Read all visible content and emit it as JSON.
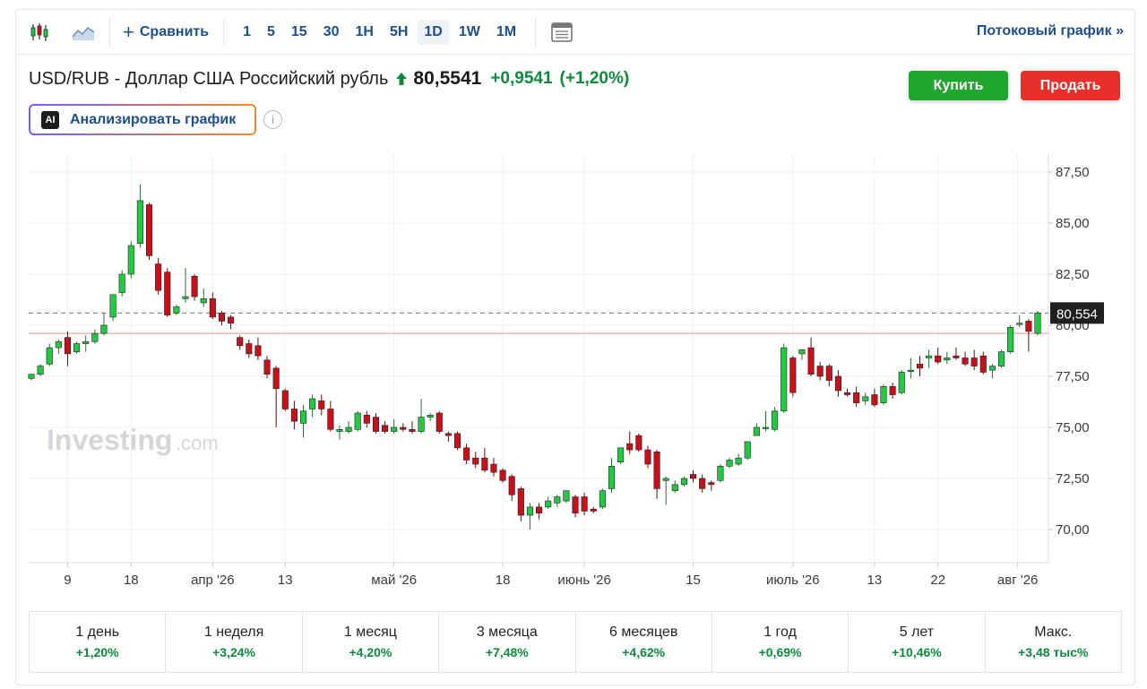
{
  "toolbar": {
    "candles_icon": "candlestick-icon",
    "area_icon": "area-chart-icon",
    "compare_label": "Сравнить",
    "intervals": [
      "1",
      "5",
      "15",
      "30",
      "1H",
      "5H",
      "1D",
      "1W",
      "1M"
    ],
    "active_interval": "1D",
    "indicators_icon": "indicators-icon",
    "stream_label": "Потоковый график »"
  },
  "header": {
    "pair_name": "USD/RUB - Доллар США Российский рубль",
    "price": "80,5541",
    "change": "+0,9541",
    "change_pct": "(+1,20%)",
    "direction": "up",
    "buy_label": "Купить",
    "sell_label": "Продать"
  },
  "ai": {
    "badge": "AI",
    "label": "Анализировать график",
    "info_icon": "info-icon"
  },
  "watermark": {
    "brand": "Investing",
    "suffix": ".com"
  },
  "colors": {
    "up": "#23c843",
    "down": "#c8101b",
    "accent": "#1c4f8c",
    "positive_text": "#0d8a3c",
    "buy": "#1fa62f",
    "sell": "#e8302b"
  },
  "chart_data": {
    "type": "candlestick",
    "title": "",
    "xlabel": "",
    "ylabel": "",
    "ylim": [
      68.5,
      88.5
    ],
    "y_ticks": [
      70,
      72.5,
      75,
      77.5,
      80,
      82.5,
      85,
      87.5
    ],
    "y_tick_labels": [
      "70,00",
      "72,50",
      "75,00",
      "77,50",
      "80,00",
      "82,50",
      "85,00",
      "87,50"
    ],
    "x_tick_labels": [
      "9",
      "18",
      "апр '26",
      "13",
      "май '26",
      "18",
      "июнь '26",
      "15",
      "июль '26",
      "13",
      "22",
      "авг '26"
    ],
    "last_price": 80.554,
    "last_price_label": "80,554",
    "reference_level": 79.6,
    "grid": true,
    "series": [
      {
        "o": 77.4,
        "h": 77.6,
        "l": 77.3,
        "c": 77.6
      },
      {
        "o": 77.6,
        "h": 78.1,
        "l": 77.5,
        "c": 78.0
      },
      {
        "o": 78.1,
        "h": 79.1,
        "l": 78.0,
        "c": 78.9
      },
      {
        "o": 78.9,
        "h": 79.3,
        "l": 78.6,
        "c": 79.2
      },
      {
        "o": 79.4,
        "h": 79.7,
        "l": 78.0,
        "c": 78.6
      },
      {
        "o": 78.7,
        "h": 79.2,
        "l": 78.6,
        "c": 79.1
      },
      {
        "o": 79.1,
        "h": 79.5,
        "l": 78.7,
        "c": 79.2
      },
      {
        "o": 79.2,
        "h": 79.8,
        "l": 79.1,
        "c": 79.6
      },
      {
        "o": 79.6,
        "h": 80.6,
        "l": 79.5,
        "c": 80.0
      },
      {
        "o": 80.4,
        "h": 81.5,
        "l": 80.2,
        "c": 81.5
      },
      {
        "o": 81.6,
        "h": 82.7,
        "l": 81.4,
        "c": 82.5
      },
      {
        "o": 82.5,
        "h": 84.1,
        "l": 82.3,
        "c": 83.9
      },
      {
        "o": 84.0,
        "h": 86.9,
        "l": 83.8,
        "c": 86.1
      },
      {
        "o": 85.9,
        "h": 86.0,
        "l": 83.2,
        "c": 83.4
      },
      {
        "o": 83.0,
        "h": 83.3,
        "l": 81.5,
        "c": 81.7
      },
      {
        "o": 82.6,
        "h": 82.8,
        "l": 80.4,
        "c": 80.5
      },
      {
        "o": 80.6,
        "h": 81.0,
        "l": 80.5,
        "c": 80.9
      },
      {
        "o": 81.3,
        "h": 82.8,
        "l": 81.1,
        "c": 81.4
      },
      {
        "o": 82.4,
        "h": 82.5,
        "l": 81.2,
        "c": 81.4
      },
      {
        "o": 81.1,
        "h": 81.8,
        "l": 80.9,
        "c": 81.3
      },
      {
        "o": 81.3,
        "h": 81.6,
        "l": 80.3,
        "c": 80.4
      },
      {
        "o": 80.6,
        "h": 80.7,
        "l": 80.0,
        "c": 80.2
      },
      {
        "o": 80.4,
        "h": 80.5,
        "l": 79.8,
        "c": 80.1
      },
      {
        "o": 79.4,
        "h": 79.5,
        "l": 78.8,
        "c": 79.0
      },
      {
        "o": 79.1,
        "h": 79.3,
        "l": 78.4,
        "c": 78.6
      },
      {
        "o": 79.0,
        "h": 79.4,
        "l": 78.3,
        "c": 78.5
      },
      {
        "o": 78.3,
        "h": 78.5,
        "l": 77.4,
        "c": 77.6
      },
      {
        "o": 77.9,
        "h": 78.0,
        "l": 75.0,
        "c": 76.9
      },
      {
        "o": 76.8,
        "h": 76.9,
        "l": 75.8,
        "c": 75.9
      },
      {
        "o": 75.9,
        "h": 76.3,
        "l": 74.9,
        "c": 75.3
      },
      {
        "o": 75.2,
        "h": 76.1,
        "l": 74.5,
        "c": 75.8
      },
      {
        "o": 75.9,
        "h": 76.6,
        "l": 75.5,
        "c": 76.4
      },
      {
        "o": 76.3,
        "h": 76.6,
        "l": 75.6,
        "c": 75.9
      },
      {
        "o": 75.9,
        "h": 76.3,
        "l": 74.8,
        "c": 74.9
      },
      {
        "o": 74.8,
        "h": 75.1,
        "l": 74.4,
        "c": 74.9
      },
      {
        "o": 74.8,
        "h": 75.3,
        "l": 74.7,
        "c": 75.0
      },
      {
        "o": 74.9,
        "h": 75.8,
        "l": 74.8,
        "c": 75.7
      },
      {
        "o": 75.6,
        "h": 75.8,
        "l": 75.0,
        "c": 75.2
      },
      {
        "o": 75.5,
        "h": 75.7,
        "l": 74.7,
        "c": 74.8
      },
      {
        "o": 75.1,
        "h": 75.3,
        "l": 74.7,
        "c": 74.8
      },
      {
        "o": 74.8,
        "h": 75.4,
        "l": 74.7,
        "c": 75.0
      },
      {
        "o": 75.0,
        "h": 75.2,
        "l": 74.8,
        "c": 74.9
      },
      {
        "o": 74.9,
        "h": 75.3,
        "l": 74.7,
        "c": 74.8
      },
      {
        "o": 74.8,
        "h": 76.4,
        "l": 74.7,
        "c": 75.5
      },
      {
        "o": 75.5,
        "h": 75.7,
        "l": 75.3,
        "c": 75.6
      },
      {
        "o": 75.7,
        "h": 75.8,
        "l": 74.7,
        "c": 74.8
      },
      {
        "o": 74.7,
        "h": 74.8,
        "l": 74.3,
        "c": 74.6
      },
      {
        "o": 74.7,
        "h": 74.8,
        "l": 73.9,
        "c": 74.0
      },
      {
        "o": 74.0,
        "h": 74.2,
        "l": 73.2,
        "c": 73.4
      },
      {
        "o": 73.5,
        "h": 73.8,
        "l": 73.0,
        "c": 73.2
      },
      {
        "o": 73.5,
        "h": 74.0,
        "l": 72.8,
        "c": 72.9
      },
      {
        "o": 73.2,
        "h": 73.5,
        "l": 72.6,
        "c": 72.8
      },
      {
        "o": 72.9,
        "h": 73.0,
        "l": 72.3,
        "c": 72.4
      },
      {
        "o": 72.6,
        "h": 72.7,
        "l": 71.4,
        "c": 71.7
      },
      {
        "o": 72.0,
        "h": 72.1,
        "l": 70.4,
        "c": 70.7
      },
      {
        "o": 70.7,
        "h": 71.3,
        "l": 70.0,
        "c": 71.1
      },
      {
        "o": 71.1,
        "h": 71.3,
        "l": 70.5,
        "c": 70.8
      },
      {
        "o": 71.1,
        "h": 71.6,
        "l": 71.0,
        "c": 71.4
      },
      {
        "o": 71.3,
        "h": 71.7,
        "l": 71.1,
        "c": 71.6
      },
      {
        "o": 71.4,
        "h": 71.9,
        "l": 71.3,
        "c": 71.9
      },
      {
        "o": 71.6,
        "h": 71.7,
        "l": 70.6,
        "c": 70.8
      },
      {
        "o": 71.6,
        "h": 71.8,
        "l": 70.7,
        "c": 70.9
      },
      {
        "o": 71.0,
        "h": 71.1,
        "l": 70.8,
        "c": 70.9
      },
      {
        "o": 71.1,
        "h": 72.0,
        "l": 71.0,
        "c": 71.9
      },
      {
        "o": 72.0,
        "h": 73.5,
        "l": 71.8,
        "c": 73.1
      },
      {
        "o": 73.3,
        "h": 74.0,
        "l": 73.2,
        "c": 74.0
      },
      {
        "o": 74.2,
        "h": 74.8,
        "l": 73.7,
        "c": 73.9
      },
      {
        "o": 74.6,
        "h": 74.7,
        "l": 73.8,
        "c": 73.9
      },
      {
        "o": 73.9,
        "h": 74.1,
        "l": 73.0,
        "c": 73.2
      },
      {
        "o": 73.8,
        "h": 73.9,
        "l": 71.5,
        "c": 72.0
      },
      {
        "o": 72.4,
        "h": 72.6,
        "l": 71.2,
        "c": 72.5
      },
      {
        "o": 71.9,
        "h": 72.4,
        "l": 71.8,
        "c": 72.2
      },
      {
        "o": 72.2,
        "h": 72.6,
        "l": 72.1,
        "c": 72.5
      },
      {
        "o": 72.7,
        "h": 72.9,
        "l": 72.3,
        "c": 72.5
      },
      {
        "o": 72.5,
        "h": 72.7,
        "l": 71.8,
        "c": 72.0
      },
      {
        "o": 72.3,
        "h": 72.4,
        "l": 71.9,
        "c": 72.2
      },
      {
        "o": 72.4,
        "h": 73.2,
        "l": 72.3,
        "c": 73.1
      },
      {
        "o": 73.1,
        "h": 73.5,
        "l": 73.0,
        "c": 73.4
      },
      {
        "o": 73.2,
        "h": 73.7,
        "l": 73.1,
        "c": 73.5
      },
      {
        "o": 73.5,
        "h": 74.3,
        "l": 73.4,
        "c": 74.3
      },
      {
        "o": 74.6,
        "h": 75.2,
        "l": 74.6,
        "c": 75.0
      },
      {
        "o": 75.0,
        "h": 75.8,
        "l": 74.8,
        "c": 75.0
      },
      {
        "o": 74.9,
        "h": 76.0,
        "l": 74.8,
        "c": 75.8
      },
      {
        "o": 75.8,
        "h": 79.1,
        "l": 75.7,
        "c": 78.9
      },
      {
        "o": 78.4,
        "h": 78.5,
        "l": 76.5,
        "c": 76.7
      },
      {
        "o": 78.6,
        "h": 78.8,
        "l": 78.3,
        "c": 78.8
      },
      {
        "o": 78.9,
        "h": 79.4,
        "l": 77.5,
        "c": 77.6
      },
      {
        "o": 78.0,
        "h": 78.2,
        "l": 77.3,
        "c": 77.5
      },
      {
        "o": 78.0,
        "h": 78.1,
        "l": 77.0,
        "c": 77.3
      },
      {
        "o": 77.5,
        "h": 77.8,
        "l": 76.5,
        "c": 76.8
      },
      {
        "o": 76.7,
        "h": 76.9,
        "l": 76.5,
        "c": 76.6
      },
      {
        "o": 76.7,
        "h": 77.0,
        "l": 76.0,
        "c": 76.2
      },
      {
        "o": 76.3,
        "h": 76.7,
        "l": 76.1,
        "c": 76.5
      },
      {
        "o": 76.6,
        "h": 76.9,
        "l": 76.0,
        "c": 76.1
      },
      {
        "o": 76.2,
        "h": 77.1,
        "l": 76.1,
        "c": 77.0
      },
      {
        "o": 77.0,
        "h": 77.2,
        "l": 76.4,
        "c": 76.6
      },
      {
        "o": 76.7,
        "h": 77.8,
        "l": 76.6,
        "c": 77.7
      },
      {
        "o": 77.8,
        "h": 78.4,
        "l": 77.4,
        "c": 77.8
      },
      {
        "o": 78.1,
        "h": 78.5,
        "l": 77.5,
        "c": 77.9
      },
      {
        "o": 78.4,
        "h": 78.8,
        "l": 77.9,
        "c": 78.5
      },
      {
        "o": 78.5,
        "h": 78.9,
        "l": 78.1,
        "c": 78.2
      },
      {
        "o": 78.3,
        "h": 78.7,
        "l": 78.1,
        "c": 78.4
      },
      {
        "o": 78.5,
        "h": 78.9,
        "l": 78.3,
        "c": 78.4
      },
      {
        "o": 78.4,
        "h": 78.7,
        "l": 78.0,
        "c": 78.1
      },
      {
        "o": 78.4,
        "h": 78.8,
        "l": 77.8,
        "c": 78.0
      },
      {
        "o": 78.5,
        "h": 78.7,
        "l": 77.6,
        "c": 77.7
      },
      {
        "o": 77.8,
        "h": 78.1,
        "l": 77.4,
        "c": 78.0
      },
      {
        "o": 78.0,
        "h": 78.8,
        "l": 77.9,
        "c": 78.7
      },
      {
        "o": 78.7,
        "h": 80.0,
        "l": 78.6,
        "c": 79.9
      },
      {
        "o": 80.1,
        "h": 80.5,
        "l": 79.9,
        "c": 80.1
      },
      {
        "o": 80.2,
        "h": 80.3,
        "l": 78.7,
        "c": 79.7
      },
      {
        "o": 79.6,
        "h": 80.7,
        "l": 79.5,
        "c": 80.6
      }
    ]
  },
  "performance": [
    {
      "label": "1 день",
      "value": "+1,20%"
    },
    {
      "label": "1 неделя",
      "value": "+3,24%"
    },
    {
      "label": "1 месяц",
      "value": "+4,20%"
    },
    {
      "label": "3 месяца",
      "value": "+7,48%"
    },
    {
      "label": "6 месяцев",
      "value": "+4,62%"
    },
    {
      "label": "1 год",
      "value": "+0,69%"
    },
    {
      "label": "5 лет",
      "value": "+10,46%"
    },
    {
      "label": "Макс.",
      "value": "+3,48 тыс%"
    }
  ]
}
